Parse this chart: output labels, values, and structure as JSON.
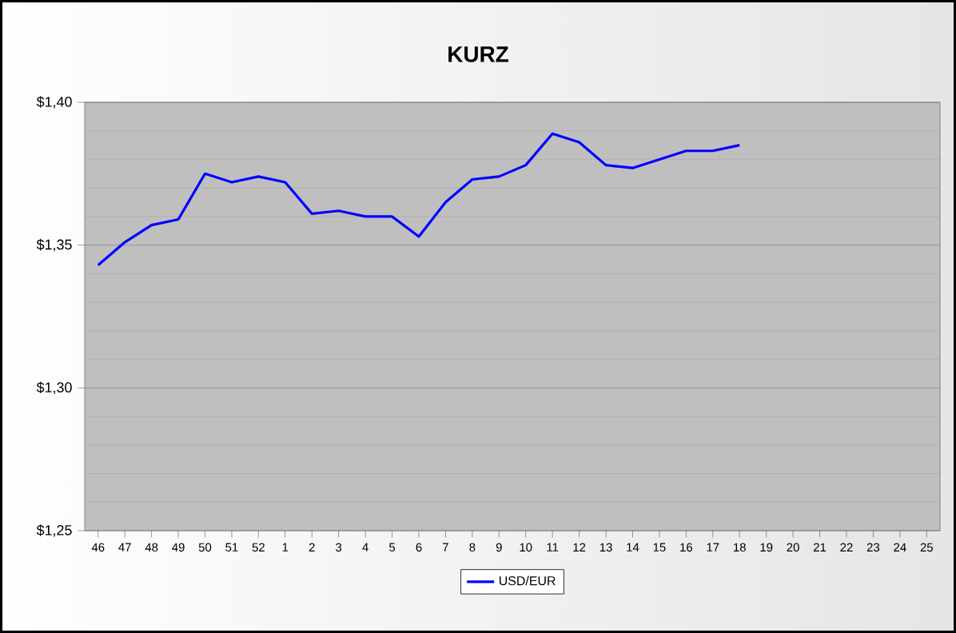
{
  "chart_data": {
    "type": "line",
    "title": "KURZ",
    "categories": [
      "46",
      "47",
      "48",
      "49",
      "50",
      "51",
      "52",
      "1",
      "2",
      "3",
      "4",
      "5",
      "6",
      "7",
      "8",
      "9",
      "10",
      "11",
      "12",
      "13",
      "14",
      "15",
      "16",
      "17",
      "18",
      "19",
      "20",
      "21",
      "22",
      "23",
      "24",
      "25"
    ],
    "series": [
      {
        "name": "USD/EUR",
        "color": "#0000ff",
        "values": [
          1.343,
          1.351,
          1.357,
          1.359,
          1.375,
          1.372,
          1.374,
          1.372,
          1.361,
          1.362,
          1.36,
          1.36,
          1.353,
          1.365,
          1.373,
          1.374,
          1.378,
          1.389,
          1.386,
          1.378,
          1.377,
          1.38,
          1.383,
          1.383,
          1.385,
          null,
          null,
          null,
          null,
          null,
          null,
          null
        ]
      }
    ],
    "ylim": [
      1.25,
      1.4
    ],
    "yticks": [
      {
        "value": 1.25,
        "label": "$1,25"
      },
      {
        "value": 1.3,
        "label": "$1,30"
      },
      {
        "value": 1.35,
        "label": "$1,35"
      },
      {
        "value": 1.4,
        "label": "$1,40"
      }
    ],
    "grid": "y",
    "legend": "bottom",
    "marker": "none",
    "line_style": "solid"
  }
}
